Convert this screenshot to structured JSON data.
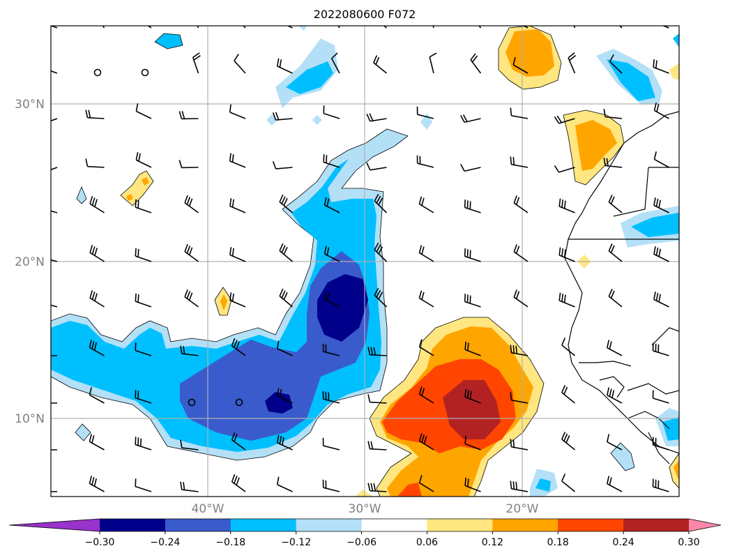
{
  "title": "2022080600 F072",
  "map": {
    "lat_labels": [
      "30°N",
      "20°N",
      "10°N"
    ],
    "lon_labels": [
      "40°W",
      "30°W",
      "20°W"
    ],
    "grid": true
  },
  "colorbar": {
    "tick_labels": [
      "−0.30",
      "−0.24",
      "−0.18",
      "−0.12",
      "−0.06",
      "0.06",
      "0.12",
      "0.18",
      "0.24",
      "0.30"
    ],
    "levels": [
      -0.3,
      -0.24,
      -0.18,
      -0.12,
      -0.06,
      0.06,
      0.12,
      0.18,
      0.24,
      0.3
    ],
    "colors": {
      "under": "#9933cc",
      "bins": [
        "#00008b",
        "#3a5bcb",
        "#00bfff",
        "#b3e0f7",
        "#ffffff",
        "#ffe680",
        "#ffa500",
        "#ff4500",
        "#b22222"
      ],
      "over": "#ff88aa"
    },
    "extend": "both"
  },
  "colors": {
    "n30": "#00008b",
    "n24": "#3a5bcb",
    "n18": "#00bfff",
    "n12": "#b3e0f7",
    "p06": "#ffe680",
    "p12": "#ffa500",
    "p18": "#ff4500",
    "p24": "#b22222",
    "grid": "#b0b0b0"
  }
}
